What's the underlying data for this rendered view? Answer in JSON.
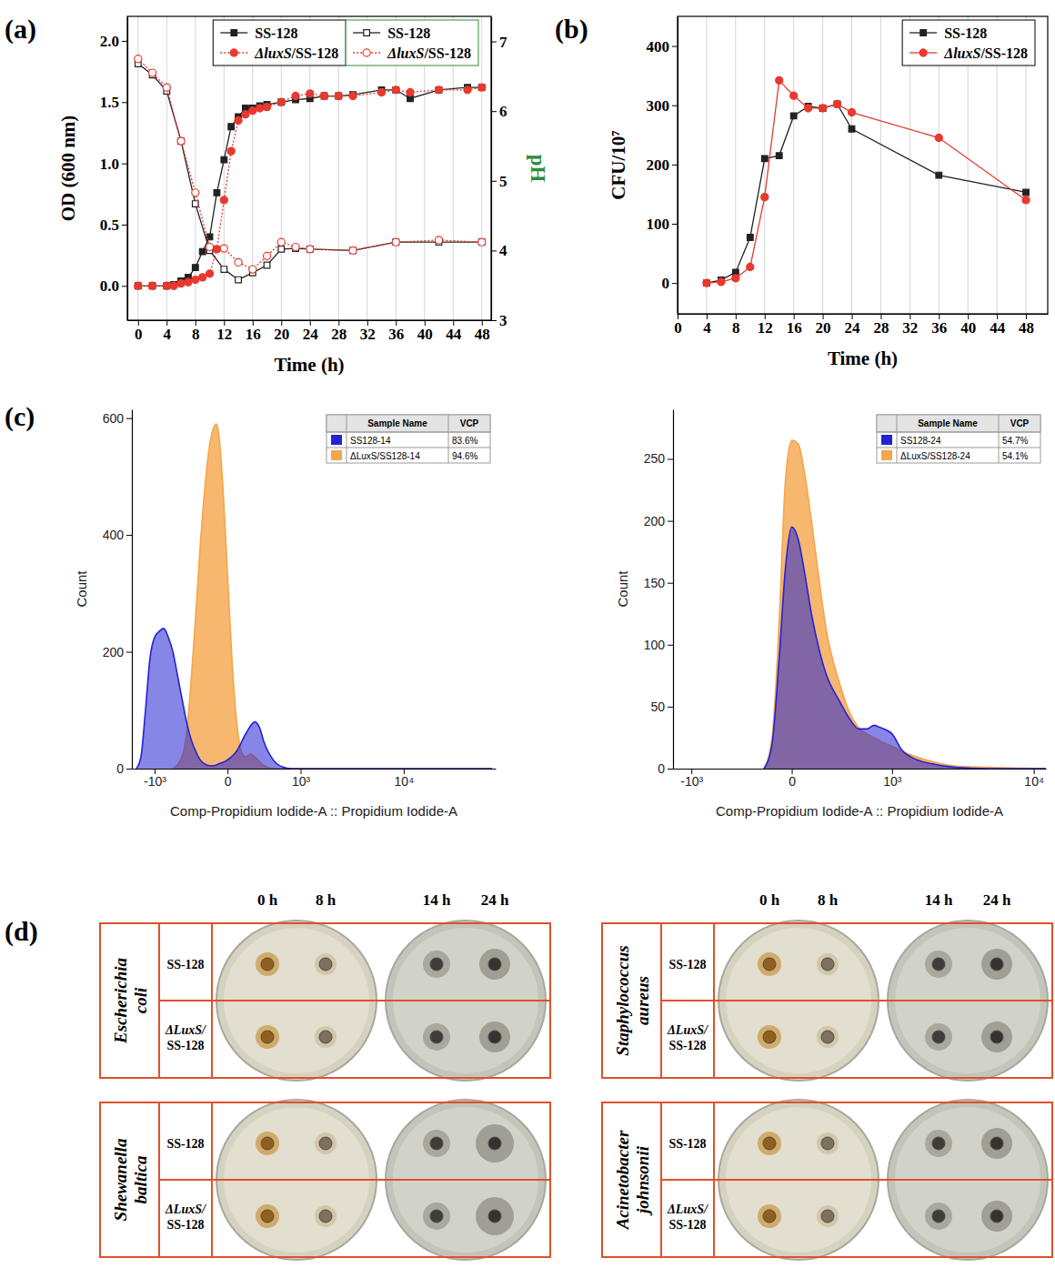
{
  "chart_data": [
    {
      "panel_label": "(a)",
      "type": "line",
      "x_label": "Time (h)",
      "y_label": "OD (600 nm)",
      "y2_label": "pH",
      "xlim": [
        -1.5,
        49.3
      ],
      "xticks": [
        0,
        4,
        8,
        12,
        16,
        20,
        24,
        28,
        32,
        36,
        40,
        44,
        48
      ],
      "ylim": [
        -0.28,
        2.2
      ],
      "yticks": [
        {
          "value": 0,
          "label": "0.0"
        },
        0.5,
        {
          "value": 1,
          "label": "1.0"
        },
        1.5,
        {
          "value": 2,
          "label": "2.0"
        }
      ],
      "y2lim": [
        3,
        7.36
      ],
      "y2ticks": [
        3,
        4,
        5,
        6,
        7
      ],
      "grid": "x",
      "legend": "top",
      "series": [
        {
          "name": "SS-128",
          "color": "#222222",
          "marker": "square",
          "line_style": "solid",
          "x": [
            0,
            2,
            4,
            5,
            6,
            7,
            8,
            9,
            10,
            11,
            12,
            13,
            14,
            15,
            16,
            17,
            18,
            20,
            22,
            24,
            26,
            28,
            30,
            34,
            36,
            38,
            42,
            46,
            48
          ],
          "values": [
            0,
            0,
            0,
            0.01,
            0.04,
            0.07,
            0.15,
            0.28,
            0.4,
            0.76,
            1.03,
            1.3,
            1.38,
            1.45,
            1.45,
            1.47,
            1.48,
            1.5,
            1.52,
            1.53,
            1.55,
            1.55,
            1.56,
            1.6,
            1.6,
            1.53,
            1.6,
            1.62,
            1.62
          ]
        },
        {
          "name": "ΔluxS/SS-128",
          "color": "#e8392f",
          "marker": "circle",
          "line_style": "dotted",
          "x": [
            0,
            2,
            4,
            5,
            6,
            7,
            8,
            9,
            10,
            11,
            12,
            13,
            14,
            15,
            16,
            17,
            18,
            20,
            22,
            24,
            26,
            28,
            30,
            34,
            36,
            38,
            42,
            46,
            48
          ],
          "values": [
            0,
            0,
            0,
            0,
            0.02,
            0.03,
            0.05,
            0.07,
            0.1,
            0.3,
            0.7,
            1.1,
            1.35,
            1.4,
            1.43,
            1.45,
            1.46,
            1.5,
            1.55,
            1.57,
            1.55,
            1.55,
            1.55,
            1.58,
            1.6,
            1.58,
            1.6,
            1.6,
            1.62
          ]
        },
        {
          "name": "SS-128",
          "color": "#222222",
          "marker": "open-square",
          "line_style": "solid",
          "axis": "y2",
          "x": [
            0,
            2,
            4,
            6,
            8,
            10,
            12,
            14,
            16,
            18,
            20,
            22,
            24,
            30,
            36,
            42,
            48
          ],
          "values": [
            6.68,
            6.52,
            6.29,
            5.57,
            4.67,
            4.0,
            3.73,
            3.58,
            3.68,
            3.79,
            4.02,
            4.03,
            4.02,
            4.0,
            4.12,
            4.12,
            4.12
          ]
        },
        {
          "name": "ΔluxS/SS-128",
          "color": "#e8392f",
          "marker": "open-circle",
          "line_style": "dotted",
          "axis": "y2",
          "x": [
            0,
            2,
            4,
            6,
            8,
            10,
            12,
            14,
            16,
            18,
            20,
            22,
            24,
            30,
            36,
            42,
            48
          ],
          "values": [
            6.75,
            6.55,
            6.34,
            5.57,
            4.83,
            4.05,
            4.03,
            3.83,
            3.73,
            3.92,
            4.12,
            4.05,
            4.02,
            4.0,
            4.12,
            4.15,
            4.12
          ]
        }
      ]
    },
    {
      "panel_label": "(b)",
      "type": "line",
      "x_label": "Time (h)",
      "y_label": "CFU/10⁷",
      "xlim": [
        0,
        51
      ],
      "xticks": [
        0,
        4,
        8,
        12,
        16,
        20,
        24,
        28,
        32,
        36,
        40,
        44,
        48
      ],
      "ylim": [
        -52,
        450
      ],
      "yticks": [
        0,
        100,
        200,
        300,
        400
      ],
      "grid": "x",
      "legend": "top-right",
      "series": [
        {
          "name": "SS-128",
          "color": "#222222",
          "marker": "square",
          "line_style": "solid",
          "x": [
            4,
            6,
            8,
            10,
            12,
            14,
            16,
            18,
            20,
            22,
            24,
            36,
            48
          ],
          "values": [
            0,
            5,
            18,
            77,
            210,
            215,
            282,
            298,
            295,
            302,
            260,
            182,
            153
          ]
        },
        {
          "name": "ΔluxS/SS-128",
          "color": "#e8392f",
          "marker": "circle",
          "line_style": "solid",
          "x": [
            4,
            6,
            8,
            10,
            12,
            14,
            16,
            18,
            20,
            22,
            24,
            36,
            48
          ],
          "values": [
            0,
            2,
            8,
            27,
            145,
            342,
            316,
            295,
            295,
            302,
            288,
            245,
            140
          ]
        }
      ]
    },
    {
      "panel_label": "(c)",
      "type": "area",
      "x_label": "Comp-Propidium Iodide-A :: Propidium Iodide-A",
      "y_label": "Count",
      "log": "x",
      "xlim": [
        -1750,
        65000
      ],
      "xticks": [
        {
          "value": -1000,
          "label": "-10³"
        },
        0,
        {
          "value": 1000,
          "label": "10³"
        },
        {
          "value": 10000,
          "label": "10⁴"
        }
      ],
      "ylim": [
        0,
        615
      ],
      "yticks": [
        0,
        200,
        400,
        600
      ],
      "legend": "top-right",
      "legend_columns": [
        "Sample Name",
        "VCP"
      ],
      "series": [
        {
          "name": "SS128-14",
          "color": "#2323d4",
          "vcp": 83.6,
          "vcp_label": "83.6%",
          "x": [
            -1573,
            -1409,
            -1260,
            -1123,
            -999,
            -885,
            -781,
            -687,
            -600,
            -521,
            -450,
            -384,
            -324,
            -270,
            -220,
            -174,
            -133,
            -95,
            -60,
            0,
            60,
            133,
            220,
            270,
            324,
            450,
            600,
            781,
            60480
          ],
          "values": [
            0,
            20,
            100,
            190,
            225,
            235,
            240,
            225,
            200,
            160,
            120,
            80,
            50,
            30,
            15,
            8,
            5,
            5,
            8,
            15,
            30,
            60,
            80,
            70,
            45,
            15,
            3,
            0,
            0
          ]
        },
        {
          "name": "ΔLuxS/SS128-14",
          "color": "#f5a54a",
          "vcp": 94.6,
          "vcp_label": "94.6%",
          "x": [
            -600,
            -450,
            -384,
            -324,
            -270,
            -220,
            -174,
            -133,
            -95,
            -74,
            -60,
            -29,
            0,
            29,
            60,
            95,
            133,
            174,
            220,
            324,
            450,
            60480
          ],
          "values": [
            0,
            20,
            60,
            150,
            260,
            380,
            480,
            550,
            585,
            590,
            575,
            480,
            330,
            180,
            80,
            30,
            20,
            25,
            20,
            5,
            0,
            0
          ]
        }
      ]
    },
    {
      "type": "area",
      "x_label": "Comp-Propidium Iodide-A :: Propidium Iodide-A",
      "y_label": "Count",
      "log": "x",
      "xlim": [
        -1400,
        12000
      ],
      "xticks": [
        {
          "value": -1000,
          "label": "-10³"
        },
        0,
        {
          "value": 1000,
          "label": "10³"
        },
        {
          "value": 10000,
          "label": "10⁴"
        }
      ],
      "ylim": [
        0,
        290
      ],
      "yticks": [
        0,
        50,
        100,
        150,
        200,
        250
      ],
      "legend": "top-right",
      "legend_columns": [
        "Sample Name",
        "VCP"
      ],
      "series": [
        {
          "name": "SS128-24",
          "color": "#2323d4",
          "vcp": 54.7,
          "vcp_label": "54.7%",
          "x": [
            -150,
            -100,
            -60,
            -30,
            0,
            30,
            60,
            100,
            150,
            200,
            300,
            400,
            500,
            600,
            700,
            800,
            1000,
            1200,
            1500,
            2000,
            3000,
            5000,
            12000
          ],
          "values": [
            0,
            20,
            90,
            160,
            195,
            185,
            160,
            125,
            95,
            75,
            55,
            40,
            32,
            32,
            35,
            33,
            28,
            15,
            8,
            4,
            1,
            0,
            0
          ]
        },
        {
          "name": "ΔLuxS/SS128-24",
          "color": "#f5a54a",
          "vcp": 54.1,
          "vcp_label": "54.1%",
          "x": [
            -150,
            -100,
            -60,
            -30,
            0,
            30,
            60,
            100,
            150,
            200,
            300,
            400,
            500,
            600,
            700,
            800,
            1000,
            1200,
            1500,
            2000,
            3000,
            5000,
            12000
          ],
          "values": [
            0,
            25,
            120,
            230,
            265,
            262,
            240,
            200,
            150,
            110,
            70,
            45,
            33,
            28,
            25,
            22,
            18,
            14,
            10,
            6,
            2,
            1,
            0
          ]
        }
      ]
    }
  ],
  "plate_assay": {
    "panel_label": "(d)",
    "time_points": [
      "0 h",
      "8 h",
      "14 h",
      "24 h"
    ],
    "panels": [
      {
        "organism": "Escherichia coli",
        "strains": [
          "SS-128",
          "ΔLuxS/SS-128"
        ]
      },
      {
        "organism": "Staphylococcus aureus",
        "strains": [
          "SS-128",
          "ΔLuxS/SS-128"
        ]
      },
      {
        "organism": "Shewanella baltica",
        "strains": [
          "SS-128",
          "ΔLuxS/SS-128"
        ]
      },
      {
        "organism": "Acinetobacter johnsonii",
        "strains": [
          "SS-128",
          "ΔLuxS/SS-128"
        ]
      }
    ]
  }
}
